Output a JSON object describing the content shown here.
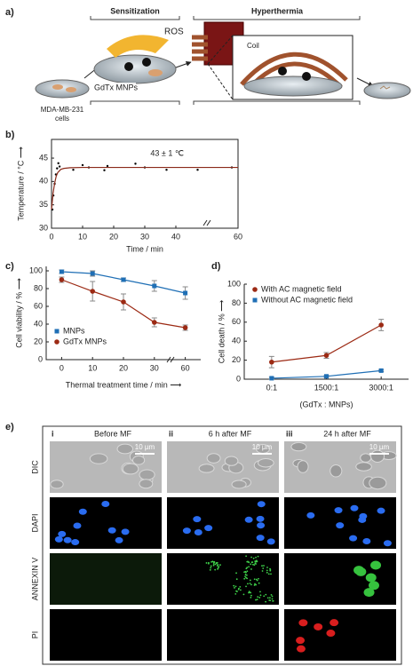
{
  "panel_a": {
    "label": "a)",
    "sensitization": "Sensitization",
    "hyperthermia": "Hyperthermia",
    "ros": "ROS",
    "gdtx": "GdTx MNPs",
    "coil": "Coil",
    "cells": [
      "MDA-MB-231",
      "cells"
    ]
  },
  "chart_data": [
    {
      "type": "scatter",
      "label": "b)",
      "ylabel": "Temperature / °C ⟶",
      "xlabel": "Time / min",
      "annotation": "43 ± 1 ℃",
      "xlim": [
        0,
        60
      ],
      "xticks": [
        0,
        10,
        20,
        30,
        40,
        60
      ],
      "ylim": [
        30,
        49
      ],
      "yticks": [
        30,
        35,
        40,
        45
      ],
      "series": [
        {
          "kind": "points",
          "color": "#000000",
          "x": [
            0.3,
            0.6,
            1,
            1.4,
            1.8,
            2.2,
            2.6,
            7,
            10,
            12,
            17,
            18,
            27,
            30,
            37,
            47,
            58
          ],
          "values": [
            34,
            37,
            39.5,
            41.5,
            42.8,
            43.9,
            43.2,
            42.5,
            43.5,
            43,
            42.4,
            43.3,
            43.8,
            43,
            42.5,
            42.5,
            43
          ]
        },
        {
          "kind": "line",
          "color": "#8b2a1a",
          "x": [
            0,
            0.5,
            1,
            1.5,
            2,
            3,
            4,
            6,
            10,
            20,
            30,
            40,
            60
          ],
          "values": [
            34,
            37.5,
            39.6,
            41.1,
            41.9,
            42.6,
            42.8,
            42.95,
            43,
            43,
            43,
            43,
            43
          ]
        }
      ]
    },
    {
      "type": "line",
      "label": "c)",
      "ylabel": "Cell viability / % ⟶",
      "xlabel": "Thermal treatment time / min ⟶",
      "categories": [
        "0",
        "10",
        "20",
        "30",
        "60"
      ],
      "ylim": [
        0,
        105
      ],
      "yticks": [
        0,
        20,
        40,
        60,
        80,
        100
      ],
      "legend": "lower left",
      "series": [
        {
          "name": "MNPs",
          "color": "#1f6fb5",
          "marker": "square",
          "values": [
            99,
            97,
            90,
            83,
            75
          ],
          "errors": [
            2,
            3,
            2,
            6,
            7
          ]
        },
        {
          "name": "GdTx MNPs",
          "color": "#9c2a14",
          "marker": "circle",
          "values": [
            90,
            77,
            65,
            42,
            36
          ],
          "errors": [
            3,
            11,
            9,
            5,
            3
          ]
        }
      ]
    },
    {
      "type": "line",
      "label": "d)",
      "ylabel": "Cell death / % ⟶",
      "xlabel": "(GdTx : MNPs)",
      "categories": [
        "0:1",
        "1500:1",
        "3000:1"
      ],
      "ylim": [
        0,
        100
      ],
      "yticks": [
        0,
        20,
        40,
        60,
        80,
        100
      ],
      "legend": "upper left",
      "series": [
        {
          "name": "With AC magnetic field",
          "color": "#9c2a14",
          "marker": "circle",
          "values": [
            18,
            25,
            57
          ],
          "errors": [
            6,
            3,
            6
          ]
        },
        {
          "name": "Without AC magnetic field",
          "color": "#1f6fb5",
          "marker": "square",
          "values": [
            1,
            3,
            9
          ],
          "errors": [
            1,
            1,
            1
          ]
        }
      ]
    }
  ],
  "panel_e": {
    "label": "e)",
    "scale_bar": "10 µm",
    "columns": [
      {
        "numeral": "i",
        "label": "Before MF"
      },
      {
        "numeral": "ii",
        "label": "6 h after MF"
      },
      {
        "numeral": "iii",
        "label": "24 h after MF"
      }
    ],
    "rows": [
      "DIC",
      "DAPI",
      "ANNEXIN V",
      "PI"
    ]
  }
}
